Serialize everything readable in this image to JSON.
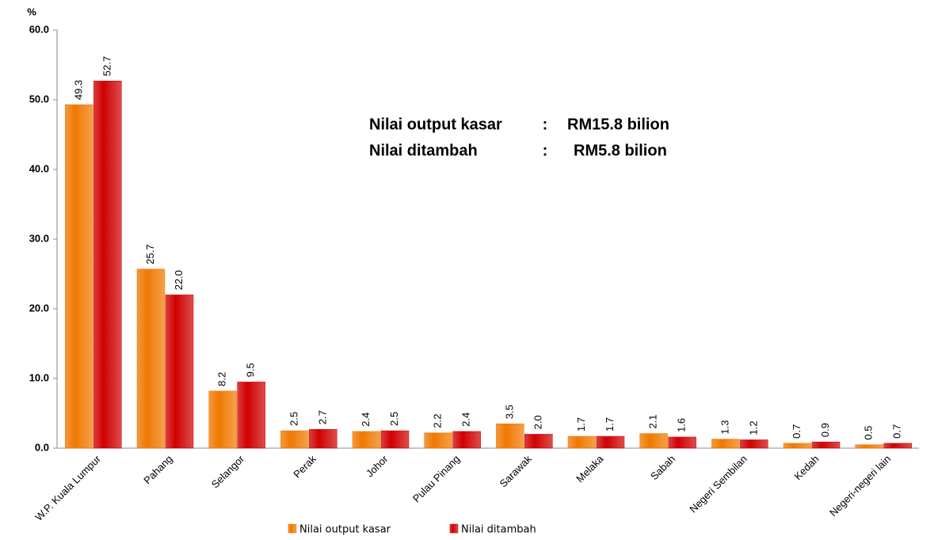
{
  "chart_data": {
    "type": "bar",
    "y_label": "%",
    "categories": [
      "W.P. Kuala Lumpur",
      "Pahang",
      "Selangor",
      "Perak",
      "Johor",
      "Pulau Pinang",
      "Sarawak",
      "Melaka",
      "Sabah",
      "Negeri Sembilan",
      "Kedah",
      "Negeri-negeri lain"
    ],
    "series": [
      {
        "name": "Nilai output kasar",
        "color": "#f07800",
        "values": [
          49.3,
          25.7,
          8.2,
          2.5,
          2.4,
          2.2,
          3.5,
          1.7,
          2.1,
          1.3,
          0.7,
          0.5
        ],
        "value_labels": [
          "49.3",
          "25.7",
          "8.2",
          "2.5",
          "2.4",
          "2.2",
          "3.5",
          "1.7",
          "2.1",
          "1.3",
          "0.7",
          "0.5"
        ]
      },
      {
        "name": "Nilai ditambah",
        "color": "#d00000",
        "values": [
          52.7,
          22.0,
          9.5,
          2.7,
          2.5,
          2.4,
          2.0,
          1.7,
          1.6,
          1.2,
          0.9,
          0.7
        ],
        "value_labels": [
          "52.7",
          "22.0",
          "9.5",
          "2.7",
          "2.5",
          "2.4",
          "2.0",
          "1.7",
          "1.6",
          "1.2",
          "0.9",
          "0.7"
        ]
      }
    ],
    "ylim": [
      0,
      60
    ],
    "yticks": [
      {
        "value": 0,
        "label": "0.0"
      },
      {
        "value": 10,
        "label": "10.0"
      },
      {
        "value": 20,
        "label": "20.0"
      },
      {
        "value": 30,
        "label": "30.0"
      },
      {
        "value": 40,
        "label": "40.0"
      },
      {
        "value": 50,
        "label": "50.0"
      },
      {
        "value": 60,
        "label": "60.0"
      }
    ],
    "grid": false,
    "legend": "bottom",
    "annotations": [
      {
        "label": "Nilai output kasar",
        "separator": ":",
        "text": "RM15.8 bilion"
      },
      {
        "label": "Nilai ditambah",
        "separator": ":",
        "text": "RM5.8 bilion"
      }
    ]
  }
}
